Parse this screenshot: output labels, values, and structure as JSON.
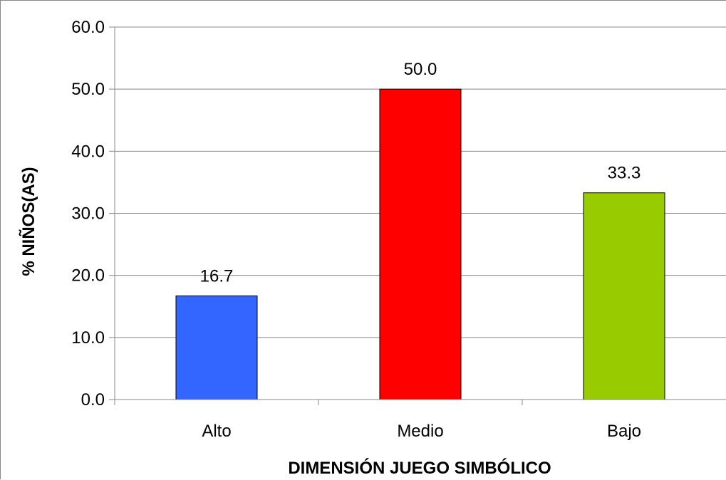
{
  "chart_data": {
    "type": "bar",
    "categories": [
      "Alto",
      "Medio",
      "Bajo"
    ],
    "values": [
      16.7,
      50.0,
      33.3
    ],
    "data_labels": [
      "16.7",
      "50.0",
      "33.3"
    ],
    "colors": [
      "#3366ff",
      "#ff0000",
      "#99cc00"
    ],
    "title": "",
    "xlabel": "DIMENSIÓN JUEGO SIMBÓLICO",
    "ylabel": "% NIÑOS(AS)",
    "ylim": [
      0,
      60
    ],
    "yticks": [
      0,
      10,
      20,
      30,
      40,
      50,
      60
    ],
    "ytick_labels": [
      "0.0",
      "10.0",
      "20.0",
      "30.0",
      "40.0",
      "50.0",
      "60.0"
    ],
    "grid": true,
    "legend": "none"
  }
}
